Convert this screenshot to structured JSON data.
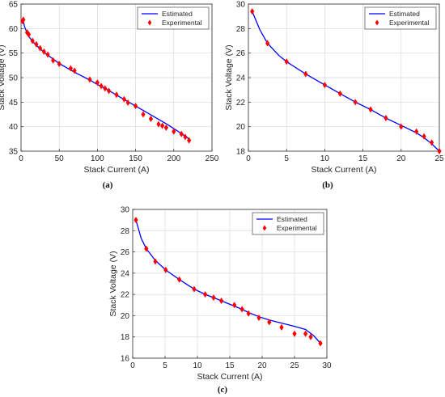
{
  "colors": {
    "estimated": "#0000ff",
    "experimental": "#ff0000",
    "grid": "#d9d9d9",
    "axis": "#262626"
  },
  "chart_data": [
    {
      "type": "line",
      "caption": "(a)",
      "xlabel": "Stack Current (A)",
      "ylabel": "Stack Voltage (V)",
      "xlim": [
        0,
        250
      ],
      "ylim": [
        35,
        65
      ],
      "xticks": [
        "0",
        "50",
        "100",
        "150",
        "200",
        "250"
      ],
      "yticks": [
        "35",
        "40",
        "45",
        "50",
        "55",
        "60",
        "65"
      ],
      "grid": true,
      "legend": "top-right",
      "series": [
        {
          "name": "Estimated",
          "style": "line",
          "x": [
            2,
            5,
            10,
            15,
            20,
            30,
            40,
            50,
            60,
            70,
            80,
            90,
            100,
            110,
            120,
            130,
            140,
            150,
            160,
            170,
            180,
            190,
            200,
            210,
            220
          ],
          "y": [
            62.0,
            60.2,
            58.4,
            57.4,
            56.6,
            55.2,
            54.0,
            52.9,
            52.0,
            51.1,
            50.3,
            49.5,
            48.6,
            47.8,
            46.9,
            46.0,
            45.1,
            44.2,
            43.3,
            42.4,
            41.5,
            40.6,
            39.6,
            38.6,
            37.5
          ]
        },
        {
          "name": "Experimental",
          "style": "marker",
          "x": [
            2,
            3,
            8,
            10,
            15,
            20,
            25,
            30,
            35,
            42,
            50,
            65,
            70,
            90,
            100,
            105,
            110,
            115,
            125,
            135,
            140,
            150,
            160,
            170,
            180,
            185,
            190,
            200,
            210,
            215,
            220
          ],
          "y": [
            61.5,
            61.8,
            59.2,
            58.8,
            57.5,
            56.8,
            56.0,
            55.3,
            54.7,
            53.5,
            52.8,
            51.9,
            51.4,
            49.6,
            49.0,
            48.3,
            47.8,
            47.3,
            46.5,
            45.6,
            44.9,
            44.2,
            42.5,
            41.6,
            40.5,
            40.2,
            39.8,
            39.0,
            38.5,
            37.9,
            37.2
          ]
        }
      ]
    },
    {
      "type": "line",
      "caption": "(b)",
      "xlabel": "Stack Current (A)",
      "ylabel": "Stack Voltage (V)",
      "xlim": [
        0,
        25
      ],
      "ylim": [
        18,
        30
      ],
      "xticks": [
        "0",
        "5",
        "10",
        "15",
        "20",
        "25"
      ],
      "yticks": [
        "18",
        "20",
        "22",
        "24",
        "26",
        "28",
        "30"
      ],
      "grid": true,
      "legend": "top-right",
      "series": [
        {
          "name": "Estimated",
          "style": "line",
          "x": [
            0.5,
            1.5,
            2.5,
            4,
            5,
            7.5,
            10,
            12,
            14,
            16,
            18,
            20,
            22,
            23,
            24,
            25
          ],
          "y": [
            29.4,
            27.9,
            26.8,
            25.8,
            25.3,
            24.3,
            23.4,
            22.7,
            22.0,
            21.4,
            20.7,
            20.1,
            19.5,
            19.1,
            18.6,
            18.0
          ]
        },
        {
          "name": "Experimental",
          "style": "marker",
          "x": [
            0.5,
            2.5,
            5,
            7.5,
            10,
            12,
            14,
            16,
            18,
            20,
            22,
            23,
            24,
            25
          ],
          "y": [
            29.4,
            26.8,
            25.3,
            24.3,
            23.4,
            22.7,
            22.0,
            21.4,
            20.7,
            20.0,
            19.6,
            19.2,
            18.7,
            18.0
          ]
        }
      ]
    },
    {
      "type": "line",
      "caption": "(c)",
      "xlabel": "Stack Current (A)",
      "ylabel": "Stack Voltage (V)",
      "xlim": [
        0,
        30
      ],
      "ylim": [
        16,
        30
      ],
      "xticks": [
        "0",
        "5",
        "10",
        "15",
        "20",
        "25",
        "30"
      ],
      "yticks": [
        "16",
        "18",
        "20",
        "22",
        "24",
        "26",
        "28",
        "30"
      ],
      "grid": true,
      "legend": "top-right",
      "series": [
        {
          "name": "Estimated",
          "style": "line",
          "x": [
            0.5,
            1.3,
            2.1,
            3.5,
            5.1,
            7.2,
            9.5,
            11.2,
            12.5,
            13.7,
            15.7,
            16.9,
            17.9,
            19.5,
            21.1,
            23.0,
            25.0,
            26.7,
            28.0,
            29.0
          ],
          "y": [
            29.0,
            27.3,
            26.3,
            25.2,
            24.3,
            23.4,
            22.5,
            22.0,
            21.7,
            21.4,
            20.9,
            20.6,
            20.3,
            19.9,
            19.6,
            19.3,
            19.0,
            18.7,
            18.1,
            17.4
          ]
        },
        {
          "name": "Experimental",
          "style": "marker",
          "x": [
            0.5,
            2.1,
            3.5,
            5.1,
            7.2,
            9.5,
            11.2,
            12.5,
            13.7,
            15.7,
            16.9,
            17.9,
            19.5,
            21.1,
            23.0,
            25.0,
            26.7,
            27.5,
            29.0
          ],
          "y": [
            29.0,
            26.3,
            25.1,
            24.3,
            23.4,
            22.5,
            22.0,
            21.7,
            21.4,
            21.0,
            20.6,
            20.2,
            19.8,
            19.4,
            18.9,
            18.3,
            18.3,
            18.0,
            17.4
          ]
        }
      ]
    }
  ]
}
